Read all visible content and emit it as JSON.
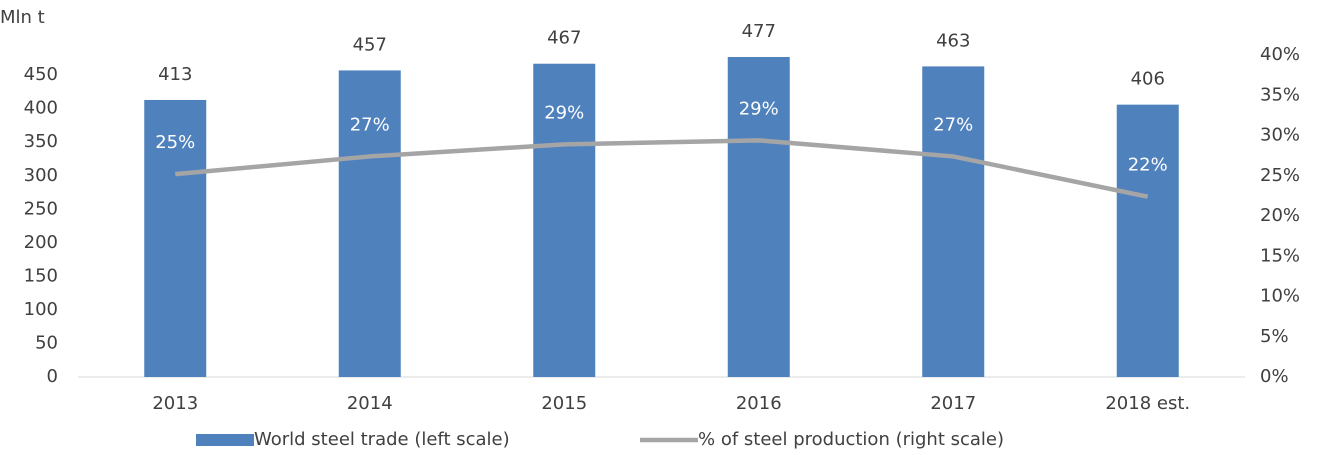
{
  "chart_data": {
    "type": "bar-line",
    "ylabel": "Mln t",
    "categories": [
      "2013",
      "2014",
      "2015",
      "2016",
      "2017",
      "2018 est."
    ],
    "series": [
      {
        "name": "World steel trade (left scale)",
        "type": "bar",
        "color": "#4f81bd",
        "values": [
          413,
          457,
          467,
          477,
          463,
          406
        ]
      },
      {
        "name": "% of steel production (right scale)",
        "type": "line",
        "axis": "y2",
        "color": "#a5a5a5",
        "values": [
          25.2,
          27.4,
          28.9,
          29.4,
          27.4,
          22.4
        ],
        "value_labels": [
          "25%",
          "27%",
          "29%",
          "29%",
          "27%",
          "22%"
        ]
      }
    ],
    "ylim": [
      0,
      480
    ],
    "yticks": [
      0,
      50,
      100,
      150,
      200,
      250,
      300,
      350,
      400,
      450
    ],
    "y2lim": [
      0,
      40
    ],
    "y2ticks": [
      {
        "value": 0,
        "label": "0%"
      },
      {
        "value": 5,
        "label": "5%"
      },
      {
        "value": 10,
        "label": "10%"
      },
      {
        "value": 15,
        "label": "15%"
      },
      {
        "value": 20,
        "label": "20%"
      },
      {
        "value": 25,
        "label": "25%"
      },
      {
        "value": 30,
        "label": "30%"
      },
      {
        "value": 35,
        "label": "35%"
      },
      {
        "value": 40,
        "label": "40%"
      }
    ],
    "legend": "bottom"
  }
}
